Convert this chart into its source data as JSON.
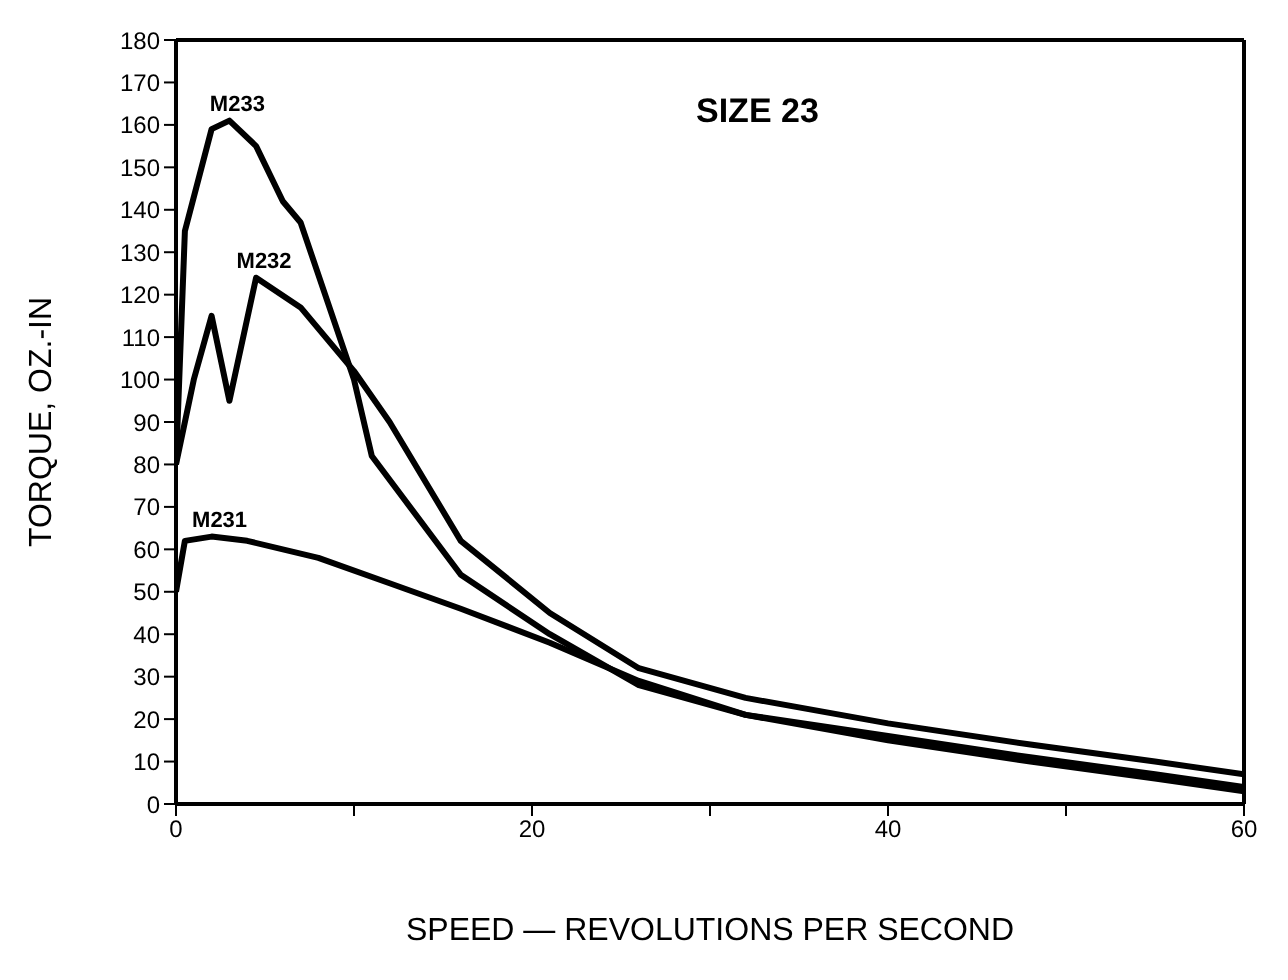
{
  "chart_data": {
    "type": "line",
    "title": "SIZE 23",
    "xlabel": "SPEED — REVOLUTIONS PER SECOND",
    "ylabel": "TORQUE, OZ.-IN",
    "xlim": [
      0,
      60
    ],
    "xticks": [
      0,
      {
        "value": 10,
        "label": null
      },
      20,
      {
        "value": 30,
        "label": null
      },
      40,
      {
        "value": 50,
        "label": null
      },
      60
    ],
    "ylim": [
      0,
      180
    ],
    "yticks": [
      0,
      10,
      20,
      30,
      40,
      50,
      60,
      70,
      80,
      90,
      100,
      110,
      120,
      130,
      140,
      150,
      160,
      170,
      180
    ],
    "marker": "none",
    "line_style": "solid",
    "series": [
      {
        "name": "M233",
        "color": "#000000",
        "x": [
          0,
          0.5,
          2,
          3,
          4.5,
          6,
          7,
          10,
          11,
          16,
          21,
          26,
          32,
          40,
          48,
          55,
          60
        ],
        "values": [
          80,
          135,
          159,
          161,
          155,
          142,
          137,
          100,
          82,
          54,
          40,
          28,
          21,
          16,
          11,
          7,
          4
        ]
      },
      {
        "name": "M232",
        "color": "#000000",
        "x": [
          0,
          1,
          2,
          3,
          4.5,
          7,
          10,
          12,
          16,
          21,
          26,
          32,
          40,
          48,
          55,
          60
        ],
        "values": [
          80,
          100,
          115,
          95,
          124,
          117,
          102,
          90,
          62,
          45,
          32,
          25,
          19,
          14,
          10,
          7
        ]
      },
      {
        "name": "M231",
        "color": "#000000",
        "x": [
          0,
          0.5,
          2,
          4,
          8,
          12,
          16,
          21,
          26,
          32,
          40,
          48,
          55,
          60
        ],
        "values": [
          50,
          62,
          63,
          62,
          58,
          52,
          46,
          38,
          29,
          21,
          15,
          10,
          6,
          3
        ]
      }
    ]
  }
}
